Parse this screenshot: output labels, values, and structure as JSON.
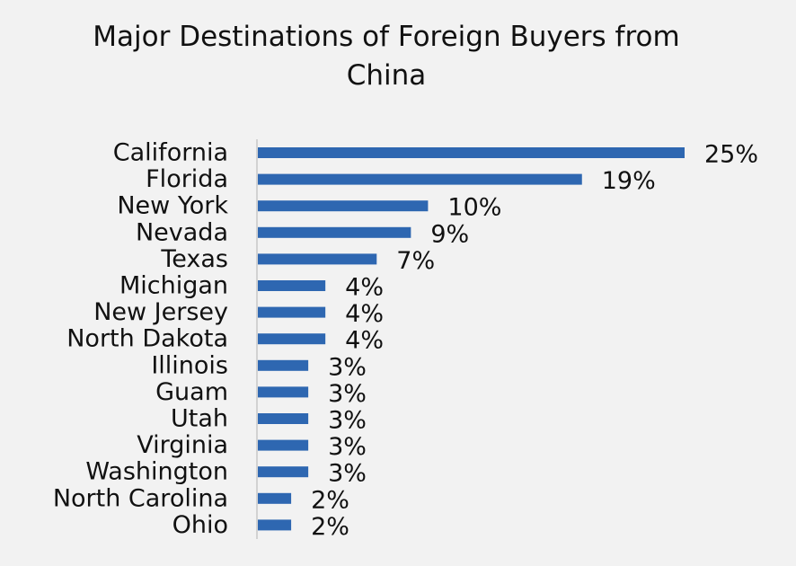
{
  "chart_data": {
    "type": "bar",
    "orientation": "horizontal",
    "title": "Major Destinations of Foreign Buyers from China",
    "categories": [
      "California",
      "Florida",
      "New York",
      "Nevada",
      "Texas",
      "Michigan",
      "New Jersey",
      "North Dakota",
      "Illinois",
      "Guam",
      "Utah",
      "Virginia",
      "Washington",
      "North Carolina",
      "Ohio"
    ],
    "values": [
      25,
      19,
      10,
      9,
      7,
      4,
      4,
      4,
      3,
      3,
      3,
      3,
      3,
      2,
      2
    ],
    "value_labels": [
      "25%",
      "19%",
      "10%",
      "9%",
      "7%",
      "4%",
      "4%",
      "4%",
      "3%",
      "3%",
      "3%",
      "3%",
      "3%",
      "2%",
      "2%"
    ],
    "color": "#2e67b1"
  }
}
